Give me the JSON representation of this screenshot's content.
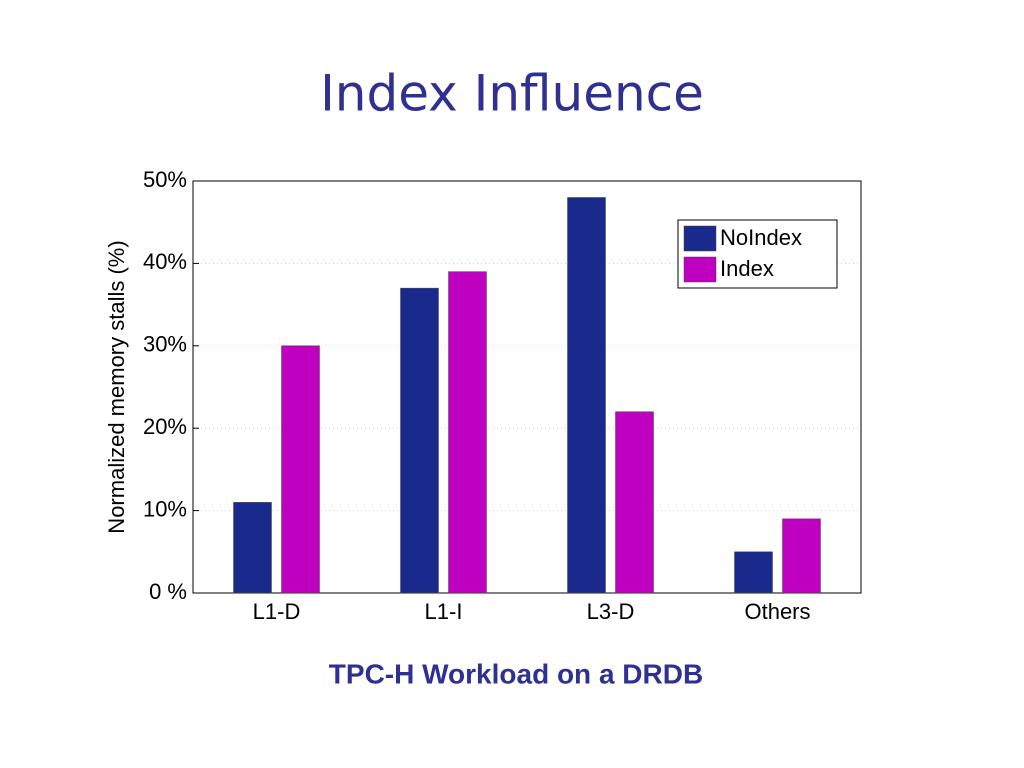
{
  "chart_data": {
    "type": "bar",
    "title": "Index Influence",
    "caption": "TPC-H Workload on a DRDB",
    "y_label": "Normalized memory stalls (%)",
    "categories": [
      "L1-D",
      "L1-I",
      "L3-D",
      "Others"
    ],
    "series": [
      {
        "name": "NoIndex",
        "color": "#1a2a8c",
        "values": [
          11,
          37,
          48,
          5
        ]
      },
      {
        "name": "Index",
        "color": "#c000c0",
        "values": [
          30,
          39,
          22,
          9
        ]
      }
    ],
    "ylim": [
      0,
      50
    ],
    "yticks": [
      {
        "value": 0,
        "label": "0 %"
      },
      {
        "value": 10,
        "label": "10%"
      },
      {
        "value": 20,
        "label": "20%"
      },
      {
        "value": 30,
        "label": "30%"
      },
      {
        "value": 40,
        "label": "40%"
      },
      {
        "value": 50,
        "label": "50%"
      }
    ],
    "grid": true,
    "legend": "upper right"
  }
}
